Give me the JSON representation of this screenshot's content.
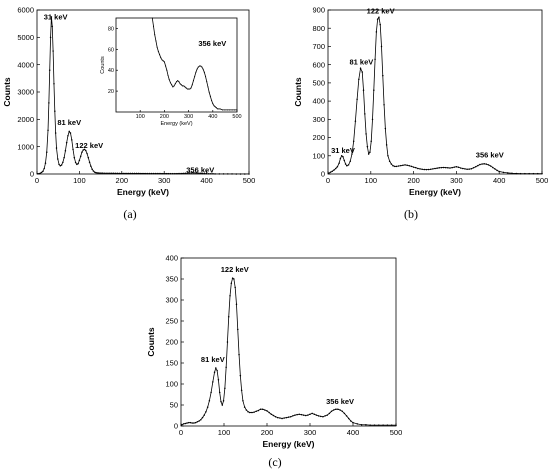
{
  "chart_data": [
    {
      "id": "a",
      "panel_label": "(a)",
      "type": "scatter",
      "title": "",
      "xlabel": "Energy (keV)",
      "ylabel": "Counts",
      "xlim": [
        0,
        500
      ],
      "ylim": [
        0,
        6000
      ],
      "xticks": [
        0,
        100,
        200,
        300,
        400,
        500
      ],
      "yticks": [
        0,
        1000,
        2000,
        3000,
        4000,
        5000,
        6000
      ],
      "grid": false,
      "annotations": [
        {
          "text": "31 keV",
          "x": 44,
          "y": 5650
        },
        {
          "text": "81 keV",
          "x": 76,
          "y": 1800
        },
        {
          "text": "122 keV",
          "x": 123,
          "y": 960
        },
        {
          "text": "356 keV",
          "x": 385,
          "y": 50
        }
      ],
      "series": [
        {
          "x": [
            2,
            5,
            8,
            11,
            14,
            17,
            20,
            23,
            26,
            28,
            30,
            32,
            34,
            36,
            38,
            40,
            42,
            44,
            46,
            49,
            52,
            55,
            58,
            61,
            64,
            67,
            70,
            73,
            76,
            79,
            82,
            85,
            88,
            91,
            94,
            97,
            100,
            103,
            106,
            109,
            112,
            115,
            118,
            121,
            124,
            127,
            130,
            133,
            136,
            139,
            142,
            145,
            148,
            151,
            155,
            160,
            165,
            170,
            175,
            180,
            185,
            190,
            195,
            200,
            205,
            210,
            215,
            220,
            225,
            230,
            235,
            240,
            245,
            250,
            255,
            260,
            265,
            270,
            275,
            280,
            285,
            290,
            295,
            300,
            305,
            310,
            315,
            320,
            325,
            330,
            335,
            340,
            345,
            350,
            355,
            360,
            365,
            370,
            375,
            380,
            385,
            390,
            395,
            400,
            405,
            410,
            415,
            420,
            430,
            440,
            450,
            460,
            470,
            480,
            490,
            500
          ],
          "y": [
            10,
            15,
            30,
            60,
            100,
            200,
            400,
            800,
            1600,
            2600,
            3800,
            5000,
            5750,
            5400,
            4500,
            3300,
            2300,
            1500,
            950,
            550,
            350,
            300,
            330,
            430,
            600,
            850,
            1150,
            1400,
            1560,
            1500,
            1250,
            900,
            600,
            420,
            350,
            380,
            500,
            650,
            800,
            880,
            900,
            860,
            750,
            600,
            430,
            290,
            180,
            110,
            70,
            50,
            40,
            35,
            32,
            30,
            30,
            28,
            28,
            27,
            26,
            26,
            25,
            25,
            24,
            24,
            24,
            23,
            23,
            22,
            22,
            22,
            21,
            21,
            20,
            20,
            20,
            19,
            19,
            18,
            18,
            18,
            17,
            17,
            16,
            16,
            16,
            16,
            15,
            15,
            15,
            16,
            18,
            20,
            24,
            28,
            32,
            36,
            40,
            42,
            38,
            32,
            26,
            20,
            16,
            12,
            10,
            8,
            7,
            6,
            5,
            4,
            3,
            3,
            2,
            2,
            2,
            2
          ]
        }
      ]
    },
    {
      "id": "a-inset",
      "panel_label": "",
      "type": "scatter",
      "title": "",
      "xlabel": "Energy (keV)",
      "ylabel": "Counts",
      "xlim": [
        0,
        500
      ],
      "ylim": [
        0,
        90
      ],
      "xticks": [
        100,
        200,
        300,
        400,
        500
      ],
      "yticks": [
        20,
        40,
        60,
        80
      ],
      "grid": false,
      "annotations": [
        {
          "text": "356 keV",
          "x": 398,
          "y": 63
        }
      ],
      "series": [
        {
          "x": [
            150,
            155,
            160,
            165,
            170,
            175,
            180,
            185,
            190,
            195,
            200,
            205,
            210,
            215,
            220,
            225,
            230,
            235,
            240,
            245,
            250,
            255,
            260,
            265,
            270,
            275,
            280,
            285,
            290,
            295,
            300,
            305,
            310,
            315,
            320,
            325,
            330,
            335,
            340,
            345,
            350,
            355,
            360,
            365,
            370,
            375,
            380,
            385,
            390,
            395,
            400,
            405,
            410,
            415,
            420,
            425,
            430,
            440,
            450,
            460,
            470,
            480,
            490,
            500
          ],
          "y": [
            90,
            82,
            74,
            68,
            62,
            58,
            55,
            52,
            50,
            49,
            48,
            44,
            40,
            35,
            31,
            28,
            26,
            24,
            25,
            27,
            29,
            30,
            29,
            27,
            26,
            25,
            25,
            24,
            23,
            22,
            22,
            22,
            23,
            26,
            30,
            34,
            38,
            41,
            43,
            44,
            44,
            43,
            41,
            38,
            34,
            29,
            24,
            19,
            15,
            11,
            8,
            6,
            5,
            4,
            3,
            3,
            3,
            2,
            2,
            2,
            2,
            2,
            2,
            2
          ]
        }
      ]
    },
    {
      "id": "b",
      "panel_label": "(b)",
      "type": "scatter",
      "title": "",
      "xlabel": "Energy (keV)",
      "ylabel": "Counts",
      "xlim": [
        0,
        500
      ],
      "ylim": [
        0,
        900
      ],
      "xticks": [
        0,
        100,
        200,
        300,
        400,
        500
      ],
      "yticks": [
        0,
        100,
        200,
        300,
        400,
        500,
        600,
        700,
        800,
        900
      ],
      "grid": false,
      "annotations": [
        {
          "text": "31 keV",
          "x": 35,
          "y": 115
        },
        {
          "text": "81 keV",
          "x": 78,
          "y": 600
        },
        {
          "text": "122 keV",
          "x": 123,
          "y": 880
        },
        {
          "text": "356 keV",
          "x": 378,
          "y": 90
        }
      ],
      "series": [
        {
          "x": [
            2,
            6,
            10,
            14,
            18,
            22,
            26,
            29,
            32,
            35,
            38,
            41,
            44,
            48,
            52,
            56,
            60,
            64,
            68,
            72,
            76,
            80,
            83,
            86,
            89,
            92,
            95,
            98,
            101,
            104,
            107,
            110,
            113,
            116,
            119,
            122,
            125,
            128,
            131,
            134,
            137,
            140,
            144,
            148,
            152,
            156,
            160,
            165,
            170,
            175,
            180,
            185,
            190,
            195,
            200,
            205,
            210,
            215,
            220,
            225,
            230,
            235,
            240,
            245,
            250,
            255,
            260,
            265,
            270,
            275,
            280,
            285,
            290,
            295,
            300,
            305,
            310,
            315,
            320,
            325,
            330,
            335,
            340,
            345,
            350,
            355,
            360,
            365,
            370,
            375,
            380,
            385,
            390,
            395,
            400,
            410,
            420,
            430,
            440,
            450,
            460,
            470,
            480,
            490,
            500
          ],
          "y": [
            5,
            10,
            15,
            22,
            30,
            40,
            60,
            85,
            100,
            95,
            75,
            55,
            45,
            50,
            70,
            110,
            180,
            290,
            410,
            520,
            580,
            560,
            460,
            330,
            220,
            150,
            110,
            120,
            180,
            300,
            460,
            630,
            780,
            850,
            860,
            820,
            700,
            540,
            380,
            250,
            160,
            100,
            70,
            55,
            45,
            42,
            42,
            44,
            46,
            48,
            50,
            48,
            45,
            42,
            38,
            35,
            30,
            28,
            26,
            25,
            24,
            25,
            26,
            28,
            30,
            32,
            34,
            35,
            36,
            35,
            34,
            33,
            35,
            38,
            40,
            37,
            33,
            30,
            28,
            26,
            27,
            29,
            34,
            40,
            46,
            52,
            55,
            56,
            54,
            50,
            44,
            36,
            28,
            20,
            14,
            9,
            6,
            4,
            3,
            2,
            2,
            2,
            2,
            2,
            2
          ]
        }
      ]
    },
    {
      "id": "c",
      "panel_label": "(c)",
      "type": "scatter",
      "title": "",
      "xlabel": "Energy (keV)",
      "ylabel": "Counts",
      "xlim": [
        0,
        500
      ],
      "ylim": [
        0,
        400
      ],
      "xticks": [
        0,
        100,
        200,
        300,
        400,
        500
      ],
      "yticks": [
        0,
        50,
        100,
        150,
        200,
        250,
        300,
        350,
        400
      ],
      "grid": false,
      "annotations": [
        {
          "text": "81 keV",
          "x": 74,
          "y": 152
        },
        {
          "text": "122 keV",
          "x": 125,
          "y": 367
        },
        {
          "text": "356 keV",
          "x": 370,
          "y": 52
        }
      ],
      "series": [
        {
          "x": [
            2,
            6,
            10,
            14,
            18,
            22,
            26,
            30,
            34,
            38,
            42,
            46,
            50,
            54,
            58,
            62,
            66,
            70,
            74,
            78,
            81,
            84,
            87,
            90,
            93,
            96,
            99,
            102,
            105,
            108,
            111,
            114,
            117,
            120,
            123,
            126,
            129,
            132,
            135,
            138,
            141,
            144,
            148,
            152,
            156,
            160,
            165,
            170,
            175,
            180,
            185,
            190,
            195,
            200,
            205,
            210,
            215,
            220,
            225,
            230,
            235,
            240,
            245,
            250,
            255,
            260,
            265,
            270,
            275,
            280,
            285,
            290,
            295,
            300,
            305,
            310,
            315,
            320,
            325,
            330,
            335,
            340,
            345,
            350,
            355,
            360,
            365,
            370,
            375,
            380,
            385,
            390,
            395,
            400,
            410,
            420,
            430,
            440,
            450,
            460,
            470,
            480,
            490,
            500
          ],
          "y": [
            3,
            5,
            6,
            7,
            8,
            8,
            7,
            7,
            8,
            10,
            12,
            15,
            20,
            26,
            34,
            45,
            60,
            80,
            105,
            128,
            138,
            132,
            110,
            80,
            58,
            50,
            60,
            90,
            140,
            200,
            260,
            310,
            340,
            352,
            350,
            330,
            290,
            230,
            170,
            120,
            85,
            60,
            45,
            38,
            34,
            32,
            32,
            33,
            35,
            37,
            40,
            40,
            38,
            36,
            32,
            28,
            25,
            22,
            20,
            19,
            18,
            19,
            20,
            21,
            22,
            24,
            26,
            27,
            28,
            27,
            26,
            25,
            26,
            28,
            30,
            28,
            26,
            24,
            23,
            22,
            24,
            26,
            30,
            35,
            38,
            40,
            40,
            38,
            35,
            30,
            24,
            18,
            12,
            8,
            5,
            3,
            3,
            2,
            2,
            2,
            2,
            2,
            2,
            2
          ]
        }
      ]
    }
  ]
}
